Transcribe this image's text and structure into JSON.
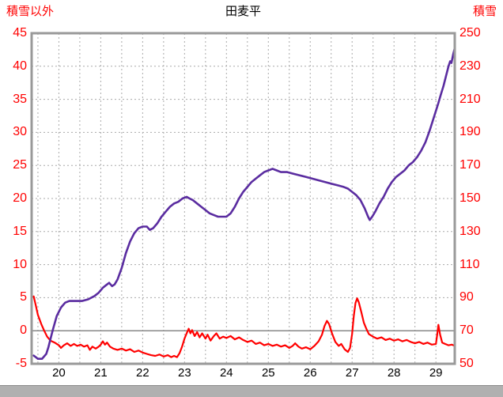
{
  "header": {
    "left_axis_label": "積雪以外",
    "title": "田麦平",
    "right_axis_label": "積雪"
  },
  "colors": {
    "temp_line": "#ff0000",
    "snow_line": "#5a2ca0",
    "axis_text": "#ff0000",
    "x_tick_text": "#000000",
    "grid": "#aaaaaa",
    "zero_line": "#888888",
    "frame": "#999999",
    "bottom_bar": "#b0b0b0"
  },
  "chart_data": {
    "type": "line",
    "title": "田麦平",
    "x_ticks": [
      20,
      21,
      22,
      23,
      24,
      25,
      26,
      27,
      28,
      29
    ],
    "x_range": [
      19.35,
      29.45
    ],
    "grid": {
      "vertical_step": 0.5,
      "horizontal_step_left": 5,
      "style": "dashed"
    },
    "legend": "none",
    "left_axis": {
      "label": "積雪以外",
      "ticks": [
        45,
        40,
        35,
        30,
        25,
        20,
        15,
        10,
        5,
        0,
        -5
      ],
      "range": [
        -5,
        45
      ]
    },
    "right_axis": {
      "label": "積雪",
      "ticks": [
        250,
        230,
        210,
        190,
        170,
        150,
        130,
        110,
        90,
        70,
        50
      ],
      "range": [
        50,
        250
      ]
    },
    "series": [
      {
        "name": "積雪以外",
        "axis": "left",
        "color": "#ff0000",
        "width": 2.2,
        "points": [
          [
            19.4,
            5.2
          ],
          [
            19.45,
            3.8
          ],
          [
            19.5,
            2.4
          ],
          [
            19.58,
            1.0
          ],
          [
            19.65,
            0.0
          ],
          [
            19.72,
            -0.9
          ],
          [
            19.8,
            -1.5
          ],
          [
            19.9,
            -1.8
          ],
          [
            20.0,
            -2.2
          ],
          [
            20.05,
            -2.6
          ],
          [
            20.12,
            -2.2
          ],
          [
            20.2,
            -1.9
          ],
          [
            20.28,
            -2.3
          ],
          [
            20.36,
            -2.0
          ],
          [
            20.44,
            -2.3
          ],
          [
            20.52,
            -2.1
          ],
          [
            20.6,
            -2.4
          ],
          [
            20.68,
            -2.2
          ],
          [
            20.74,
            -2.9
          ],
          [
            20.8,
            -2.4
          ],
          [
            20.88,
            -2.7
          ],
          [
            20.95,
            -2.4
          ],
          [
            21.0,
            -2.1
          ],
          [
            21.05,
            -1.6
          ],
          [
            21.1,
            -2.1
          ],
          [
            21.15,
            -1.8
          ],
          [
            21.22,
            -2.4
          ],
          [
            21.3,
            -2.7
          ],
          [
            21.4,
            -2.9
          ],
          [
            21.5,
            -2.7
          ],
          [
            21.6,
            -3.0
          ],
          [
            21.7,
            -2.8
          ],
          [
            21.8,
            -3.2
          ],
          [
            21.9,
            -3.0
          ],
          [
            22.0,
            -3.3
          ],
          [
            22.1,
            -3.5
          ],
          [
            22.2,
            -3.7
          ],
          [
            22.3,
            -3.8
          ],
          [
            22.4,
            -3.6
          ],
          [
            22.5,
            -3.9
          ],
          [
            22.6,
            -3.7
          ],
          [
            22.68,
            -4.0
          ],
          [
            22.75,
            -3.8
          ],
          [
            22.82,
            -4.0
          ],
          [
            22.88,
            -3.4
          ],
          [
            22.94,
            -2.4
          ],
          [
            23.0,
            -1.2
          ],
          [
            23.05,
            -0.4
          ],
          [
            23.1,
            0.3
          ],
          [
            23.14,
            -0.4
          ],
          [
            23.18,
            0.1
          ],
          [
            23.24,
            -0.8
          ],
          [
            23.3,
            -0.2
          ],
          [
            23.36,
            -1.0
          ],
          [
            23.42,
            -0.4
          ],
          [
            23.5,
            -1.2
          ],
          [
            23.55,
            -0.6
          ],
          [
            23.62,
            -1.5
          ],
          [
            23.7,
            -0.8
          ],
          [
            23.76,
            -0.4
          ],
          [
            23.84,
            -1.2
          ],
          [
            23.92,
            -0.9
          ],
          [
            24.0,
            -1.1
          ],
          [
            24.1,
            -0.8
          ],
          [
            24.2,
            -1.3
          ],
          [
            24.3,
            -1.0
          ],
          [
            24.4,
            -1.4
          ],
          [
            24.5,
            -1.7
          ],
          [
            24.6,
            -1.5
          ],
          [
            24.7,
            -2.0
          ],
          [
            24.8,
            -1.8
          ],
          [
            24.9,
            -2.2
          ],
          [
            25.0,
            -2.0
          ],
          [
            25.1,
            -2.3
          ],
          [
            25.2,
            -2.1
          ],
          [
            25.3,
            -2.4
          ],
          [
            25.4,
            -2.2
          ],
          [
            25.5,
            -2.6
          ],
          [
            25.58,
            -2.3
          ],
          [
            25.64,
            -1.9
          ],
          [
            25.72,
            -2.4
          ],
          [
            25.8,
            -2.7
          ],
          [
            25.9,
            -2.5
          ],
          [
            26.0,
            -2.8
          ],
          [
            26.1,
            -2.3
          ],
          [
            26.2,
            -1.6
          ],
          [
            26.28,
            -0.6
          ],
          [
            26.34,
            0.7
          ],
          [
            26.4,
            1.5
          ],
          [
            26.45,
            1.0
          ],
          [
            26.52,
            -0.4
          ],
          [
            26.6,
            -1.7
          ],
          [
            26.68,
            -2.3
          ],
          [
            26.74,
            -2.0
          ],
          [
            26.82,
            -2.8
          ],
          [
            26.9,
            -3.2
          ],
          [
            26.95,
            -2.6
          ],
          [
            27.0,
            -0.5
          ],
          [
            27.04,
            2.2
          ],
          [
            27.08,
            4.2
          ],
          [
            27.12,
            4.9
          ],
          [
            27.16,
            4.3
          ],
          [
            27.22,
            2.8
          ],
          [
            27.28,
            1.2
          ],
          [
            27.34,
            0.3
          ],
          [
            27.4,
            -0.5
          ],
          [
            27.5,
            -0.9
          ],
          [
            27.6,
            -1.2
          ],
          [
            27.7,
            -1.0
          ],
          [
            27.8,
            -1.4
          ],
          [
            27.9,
            -1.2
          ],
          [
            28.0,
            -1.5
          ],
          [
            28.1,
            -1.3
          ],
          [
            28.2,
            -1.6
          ],
          [
            28.3,
            -1.4
          ],
          [
            28.4,
            -1.7
          ],
          [
            28.5,
            -1.9
          ],
          [
            28.6,
            -1.7
          ],
          [
            28.7,
            -2.0
          ],
          [
            28.8,
            -1.8
          ],
          [
            28.9,
            -2.1
          ],
          [
            29.0,
            -2.0
          ],
          [
            29.03,
            -0.6
          ],
          [
            29.06,
            0.9
          ],
          [
            29.1,
            -0.6
          ],
          [
            29.15,
            -1.8
          ],
          [
            29.22,
            -2.0
          ],
          [
            29.3,
            -2.2
          ],
          [
            29.38,
            -2.1
          ],
          [
            29.45,
            -2.3
          ]
        ]
      },
      {
        "name": "積雪",
        "axis": "right",
        "color": "#5a2ca0",
        "width": 2.6,
        "points": [
          [
            19.4,
            55
          ],
          [
            19.5,
            53
          ],
          [
            19.6,
            53
          ],
          [
            19.7,
            56
          ],
          [
            19.75,
            60
          ],
          [
            19.85,
            70
          ],
          [
            19.95,
            79
          ],
          [
            20.05,
            84
          ],
          [
            20.15,
            87
          ],
          [
            20.25,
            88
          ],
          [
            20.4,
            88
          ],
          [
            20.55,
            88
          ],
          [
            20.7,
            89
          ],
          [
            20.85,
            91
          ],
          [
            20.95,
            93
          ],
          [
            21.05,
            96
          ],
          [
            21.15,
            98
          ],
          [
            21.2,
            99
          ],
          [
            21.27,
            97
          ],
          [
            21.33,
            98
          ],
          [
            21.4,
            101
          ],
          [
            21.5,
            108
          ],
          [
            21.6,
            117
          ],
          [
            21.7,
            124
          ],
          [
            21.8,
            129
          ],
          [
            21.9,
            132
          ],
          [
            22.0,
            133
          ],
          [
            22.1,
            133
          ],
          [
            22.17,
            131
          ],
          [
            22.25,
            132
          ],
          [
            22.35,
            135
          ],
          [
            22.45,
            139
          ],
          [
            22.55,
            142
          ],
          [
            22.65,
            145
          ],
          [
            22.75,
            147
          ],
          [
            22.85,
            148
          ],
          [
            22.95,
            150
          ],
          [
            23.05,
            151
          ],
          [
            23.12,
            150
          ],
          [
            23.2,
            149
          ],
          [
            23.3,
            147
          ],
          [
            23.4,
            145
          ],
          [
            23.5,
            143
          ],
          [
            23.6,
            141
          ],
          [
            23.7,
            140
          ],
          [
            23.8,
            139
          ],
          [
            23.9,
            139
          ],
          [
            24.0,
            139
          ],
          [
            24.1,
            141
          ],
          [
            24.2,
            145
          ],
          [
            24.3,
            150
          ],
          [
            24.4,
            154
          ],
          [
            24.5,
            157
          ],
          [
            24.6,
            160
          ],
          [
            24.7,
            162
          ],
          [
            24.8,
            164
          ],
          [
            24.9,
            166
          ],
          [
            25.0,
            167
          ],
          [
            25.1,
            168
          ],
          [
            25.2,
            167
          ],
          [
            25.3,
            166
          ],
          [
            25.45,
            166
          ],
          [
            25.6,
            165
          ],
          [
            25.75,
            164
          ],
          [
            25.9,
            163
          ],
          [
            26.05,
            162
          ],
          [
            26.2,
            161
          ],
          [
            26.35,
            160
          ],
          [
            26.5,
            159
          ],
          [
            26.65,
            158
          ],
          [
            26.8,
            157
          ],
          [
            26.9,
            156
          ],
          [
            27.0,
            154
          ],
          [
            27.1,
            152
          ],
          [
            27.2,
            149
          ],
          [
            27.3,
            144
          ],
          [
            27.38,
            139
          ],
          [
            27.42,
            137
          ],
          [
            27.48,
            139
          ],
          [
            27.55,
            142
          ],
          [
            27.65,
            147
          ],
          [
            27.75,
            151
          ],
          [
            27.85,
            156
          ],
          [
            27.95,
            160
          ],
          [
            28.05,
            163
          ],
          [
            28.15,
            165
          ],
          [
            28.25,
            167
          ],
          [
            28.35,
            170
          ],
          [
            28.45,
            172
          ],
          [
            28.55,
            175
          ],
          [
            28.65,
            179
          ],
          [
            28.75,
            184
          ],
          [
            28.85,
            191
          ],
          [
            28.95,
            199
          ],
          [
            29.05,
            207
          ],
          [
            29.12,
            213
          ],
          [
            29.18,
            218
          ],
          [
            29.24,
            224
          ],
          [
            29.3,
            230
          ],
          [
            29.34,
            233
          ],
          [
            29.37,
            232
          ],
          [
            29.41,
            237
          ],
          [
            29.45,
            241
          ]
        ]
      }
    ]
  }
}
